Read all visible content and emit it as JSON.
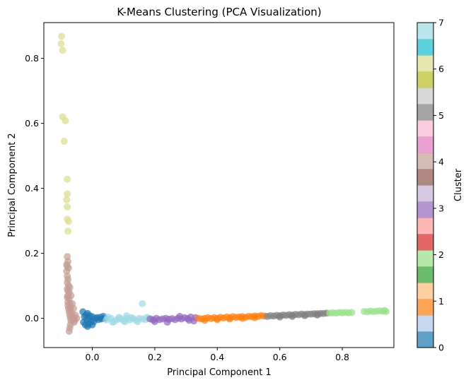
{
  "chart_data": {
    "type": "scatter",
    "title": "K-Means Clustering (PCA Visualization)",
    "xlabel": "Principal Component 1",
    "ylabel": "Principal Component 2",
    "xlim": [
      -0.155,
      0.965
    ],
    "ylim": [
      -0.09,
      0.91
    ],
    "xticks": [
      0.0,
      0.2,
      0.4,
      0.6,
      0.8
    ],
    "xtick_labels": [
      "0.0",
      "0.2",
      "0.4",
      "0.6",
      "0.8"
    ],
    "yticks": [
      0.0,
      0.2,
      0.4,
      0.6,
      0.8
    ],
    "ytick_labels": [
      "0.0",
      "0.2",
      "0.4",
      "0.6",
      "0.8"
    ],
    "grid": false,
    "marker_alpha": 0.7,
    "colorbar": {
      "label": "Cluster",
      "range": [
        0,
        7
      ],
      "ticks": [
        0,
        1,
        2,
        3,
        4,
        5,
        6,
        7
      ],
      "tick_labels": [
        "0",
        "1",
        "2",
        "3",
        "4",
        "5",
        "6",
        "7"
      ],
      "colormap": "tab20",
      "bands": [
        "#1f77b4",
        "#aec7e8",
        "#ff7f0e",
        "#ffbb78",
        "#2ca02c",
        "#98df8a",
        "#d62728",
        "#ff9896",
        "#9467bd",
        "#c5b0d5",
        "#8c564b",
        "#c49c94",
        "#e377c2",
        "#f7b6d2",
        "#7f7f7f",
        "#c7c7c7",
        "#bcbd22",
        "#dbdb8d",
        "#17becf",
        "#9edae5"
      ]
    },
    "series": [
      {
        "color": "#1f77b4",
        "points": [
          [
            -0.03,
            0.02
          ],
          [
            -0.028,
            -0.012
          ],
          [
            -0.025,
            0.005
          ],
          [
            -0.022,
            -0.02
          ],
          [
            -0.02,
            0.01
          ],
          [
            -0.018,
            -0.005
          ],
          [
            -0.015,
            0.015
          ],
          [
            -0.012,
            -0.018
          ],
          [
            -0.01,
            0.0
          ],
          [
            -0.008,
            0.008
          ],
          [
            -0.005,
            -0.012
          ],
          [
            0.0,
            0.005
          ],
          [
            0.005,
            -0.01
          ],
          [
            0.01,
            0.0
          ],
          [
            0.015,
            0.002
          ],
          [
            0.02,
            -0.004
          ],
          [
            0.025,
            0.003
          ],
          [
            0.03,
            -0.002
          ],
          [
            0.035,
            0.006
          ],
          [
            0.04,
            0.0
          ],
          [
            -0.015,
            -0.025
          ],
          [
            0.0,
            -0.02
          ]
        ]
      },
      {
        "color": "#9edae5",
        "points": [
          [
            0.045,
            -0.005
          ],
          [
            0.06,
            0.0
          ],
          [
            0.07,
            -0.01
          ],
          [
            0.08,
            -0.004
          ],
          [
            0.09,
            0.0
          ],
          [
            0.1,
            -0.008
          ],
          [
            0.11,
            0.0
          ],
          [
            0.11,
            0.008
          ],
          [
            0.12,
            -0.005
          ],
          [
            0.13,
            0.0
          ],
          [
            0.14,
            -0.006
          ],
          [
            0.15,
            0.0
          ],
          [
            0.16,
            -0.002
          ],
          [
            0.16,
            0.045
          ],
          [
            0.17,
            -0.004
          ],
          [
            0.18,
            0.0
          ],
          [
            0.19,
            -0.002
          ],
          [
            0.05,
            0.004
          ],
          [
            0.065,
            -0.012
          ],
          [
            0.085,
            0.003
          ],
          [
            0.105,
            -0.01
          ],
          [
            0.125,
            0.002
          ],
          [
            0.145,
            -0.01
          ],
          [
            0.175,
            0.003
          ]
        ]
      },
      {
        "color": "#9467bd",
        "points": [
          [
            0.185,
            -0.002
          ],
          [
            0.195,
            -0.005
          ],
          [
            0.205,
            0.0
          ],
          [
            0.215,
            -0.004
          ],
          [
            0.225,
            -0.002
          ],
          [
            0.235,
            0.0
          ],
          [
            0.245,
            -0.003
          ],
          [
            0.255,
            -0.001
          ],
          [
            0.265,
            -0.004
          ],
          [
            0.275,
            0.0
          ],
          [
            0.285,
            -0.002
          ],
          [
            0.295,
            0.002
          ],
          [
            0.305,
            -0.001
          ],
          [
            0.315,
            0.004
          ],
          [
            0.325,
            -0.008
          ],
          [
            0.33,
            0.002
          ],
          [
            0.2,
            -0.01
          ],
          [
            0.24,
            -0.012
          ],
          [
            0.28,
            0.006
          ],
          [
            0.31,
            -0.006
          ]
        ]
      },
      {
        "color": "#ff7f0e",
        "points": [
          [
            0.34,
            0.0
          ],
          [
            0.35,
            -0.002
          ],
          [
            0.36,
            0.0
          ],
          [
            0.37,
            0.002
          ],
          [
            0.38,
            -0.001
          ],
          [
            0.39,
            0.002
          ],
          [
            0.4,
            0.0
          ],
          [
            0.41,
            0.003
          ],
          [
            0.42,
            0.001
          ],
          [
            0.43,
            0.004
          ],
          [
            0.44,
            0.002
          ],
          [
            0.45,
            0.005
          ],
          [
            0.46,
            0.003
          ],
          [
            0.47,
            0.004
          ],
          [
            0.48,
            0.005
          ],
          [
            0.49,
            0.003
          ],
          [
            0.5,
            0.006
          ],
          [
            0.51,
            0.005
          ],
          [
            0.52,
            0.007
          ],
          [
            0.53,
            0.006
          ],
          [
            0.54,
            0.008
          ],
          [
            0.55,
            0.007
          ],
          [
            0.36,
            -0.006
          ],
          [
            0.4,
            -0.004
          ],
          [
            0.44,
            -0.002
          ],
          [
            0.48,
            0.0
          ],
          [
            0.52,
            0.002
          ]
        ]
      },
      {
        "color": "#7f7f7f",
        "points": [
          [
            0.56,
            0.006
          ],
          [
            0.57,
            0.008
          ],
          [
            0.58,
            0.007
          ],
          [
            0.59,
            0.009
          ],
          [
            0.6,
            0.008
          ],
          [
            0.61,
            0.01
          ],
          [
            0.62,
            0.009
          ],
          [
            0.63,
            0.011
          ],
          [
            0.64,
            0.01
          ],
          [
            0.65,
            0.012
          ],
          [
            0.66,
            0.011
          ],
          [
            0.67,
            0.013
          ],
          [
            0.68,
            0.012
          ],
          [
            0.69,
            0.013
          ],
          [
            0.7,
            0.013
          ],
          [
            0.71,
            0.014
          ],
          [
            0.72,
            0.014
          ],
          [
            0.73,
            0.015
          ],
          [
            0.74,
            0.015
          ],
          [
            0.75,
            0.016
          ],
          [
            0.6,
            0.004
          ],
          [
            0.64,
            0.006
          ],
          [
            0.68,
            0.008
          ],
          [
            0.72,
            0.01
          ]
        ]
      },
      {
        "color": "#98df8a",
        "points": [
          [
            0.76,
            0.016
          ],
          [
            0.77,
            0.017
          ],
          [
            0.78,
            0.016
          ],
          [
            0.79,
            0.018
          ],
          [
            0.8,
            0.017
          ],
          [
            0.81,
            0.018
          ],
          [
            0.82,
            0.017
          ],
          [
            0.83,
            0.018
          ],
          [
            0.87,
            0.021
          ],
          [
            0.88,
            0.02
          ],
          [
            0.89,
            0.022
          ],
          [
            0.9,
            0.021
          ],
          [
            0.91,
            0.022
          ],
          [
            0.92,
            0.023
          ],
          [
            0.93,
            0.022
          ],
          [
            0.935,
            0.024
          ],
          [
            0.94,
            0.021
          ]
        ]
      },
      {
        "color": "#c49c94",
        "points": [
          [
            -0.08,
            0.19
          ],
          [
            -0.078,
            0.175
          ],
          [
            -0.08,
            0.16
          ],
          [
            -0.082,
            0.145
          ],
          [
            -0.08,
            0.13
          ],
          [
            -0.078,
            0.12
          ],
          [
            -0.08,
            0.11
          ],
          [
            -0.076,
            0.1
          ],
          [
            -0.08,
            0.09
          ],
          [
            -0.078,
            0.085
          ],
          [
            -0.074,
            0.08
          ],
          [
            -0.078,
            0.07
          ],
          [
            -0.08,
            0.065
          ],
          [
            -0.074,
            0.06
          ],
          [
            -0.078,
            0.05
          ],
          [
            -0.072,
            0.045
          ],
          [
            -0.078,
            0.04
          ],
          [
            -0.07,
            0.035
          ],
          [
            -0.076,
            0.03
          ],
          [
            -0.07,
            0.025
          ],
          [
            -0.074,
            0.02
          ],
          [
            -0.066,
            0.015
          ],
          [
            -0.072,
            0.01
          ],
          [
            -0.062,
            0.005
          ],
          [
            -0.07,
            0.0
          ],
          [
            -0.06,
            -0.003
          ],
          [
            -0.068,
            -0.008
          ],
          [
            -0.058,
            -0.012
          ],
          [
            -0.07,
            -0.02
          ],
          [
            -0.072,
            -0.03
          ],
          [
            -0.074,
            -0.04
          ],
          [
            -0.06,
            0.03
          ],
          [
            -0.064,
            0.045
          ],
          [
            -0.068,
            0.07
          ],
          [
            -0.072,
            0.095
          ],
          [
            -0.076,
            0.155
          ],
          [
            -0.082,
            0.165
          ],
          [
            -0.05,
            0.0
          ],
          [
            -0.054,
            0.01
          ],
          [
            -0.056,
            -0.006
          ]
        ]
      },
      {
        "color": "#dbdb8d",
        "points": [
          [
            -0.098,
            0.868
          ],
          [
            -0.1,
            0.845
          ],
          [
            -0.095,
            0.825
          ],
          [
            -0.095,
            0.62
          ],
          [
            -0.086,
            0.608
          ],
          [
            -0.09,
            0.545
          ],
          [
            -0.08,
            0.428
          ],
          [
            -0.08,
            0.383
          ],
          [
            -0.082,
            0.365
          ],
          [
            -0.08,
            0.343
          ],
          [
            -0.08,
            0.305
          ],
          [
            -0.076,
            0.298
          ],
          [
            -0.078,
            0.268
          ]
        ]
      }
    ]
  }
}
